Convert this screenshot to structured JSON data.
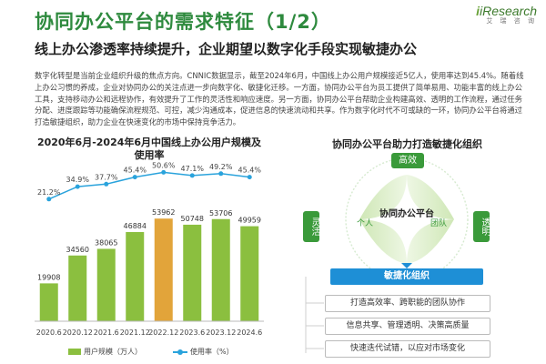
{
  "header": {
    "title": "协同办公平台的需求特征（1/2）",
    "subtitle": "线上办公渗透率持续提升，企业期望以数字化手段实现敏捷办公",
    "logo_brand": "iResearch",
    "logo_sub": "艾 瑞 咨 询"
  },
  "body_text": "数字化转型是当前企业组织升级的焦点方向。CNNIC数据显示，截至2024年6月，中国线上办公用户规模接近5亿人，使用率达到45.4%。随着线上办公习惯的养成，企业对协同办公的关注点进一步向数字化、敏捷化迁移。一方面，协同办公平台为员工提供了简单易用、功能丰富的线上办公工具，支持移动办公和远程协作，有效提升了工作的灵活性和响应速度。另一方面，协同办公平台帮助企业构建高效、透明的工作流程，通过任务分配、进度跟踪等功能确保流程规范、可控，减少沟通成本，促进信息的快速流动和共享。作为数字化时代不可或缺的一环，协同办公平台将通过打造敏捷组织，助力企业在快速变化的市场中保持竞争活力。",
  "chart_data": {
    "type": "bar",
    "title": "2020年6月-2024年6月中国线上办公用户规模及使用率",
    "categories": [
      "2020.6",
      "2020.12",
      "2021.6",
      "2021.12",
      "2022.12",
      "2023.6",
      "2023.12",
      "2024.6"
    ],
    "series": [
      {
        "name": "用户规模（万人）",
        "type": "bar",
        "values": [
          19908,
          34560,
          38065,
          46884,
          53962,
          50748,
          53706,
          49959
        ]
      },
      {
        "name": "使用率（%）",
        "type": "line",
        "values": [
          21.2,
          34.9,
          37.7,
          45.4,
          50.6,
          47.1,
          49.2,
          45.4
        ],
        "labels": [
          "21.2%",
          "34.9%",
          "37.7%",
          "45.4%",
          "50.6%",
          "47.1%",
          "49.2%",
          "45.4%"
        ]
      }
    ],
    "legend_position": "bottom",
    "colors": {
      "bar": "#8bbf3f",
      "bar_highlight": "#e2a43a",
      "line": "#2aa3dc"
    }
  },
  "diagram": {
    "title": "协同办公平台助力打造敏捷化组织",
    "center": "协同办公平台",
    "top": "高效",
    "left": "灵活",
    "right": "透明",
    "inner_left": "个人",
    "inner_right": "团队",
    "banner": "敏捷化组织",
    "items": [
      "打造高效率、跨职能的团队协作",
      "信息共享、管理透明、决策高质量",
      "快速迭代试错，以应对市场变化"
    ],
    "colors": {
      "green": "#3a9a3a",
      "light_green": "#e3f1d6",
      "blue": "#1e8fd6"
    }
  }
}
